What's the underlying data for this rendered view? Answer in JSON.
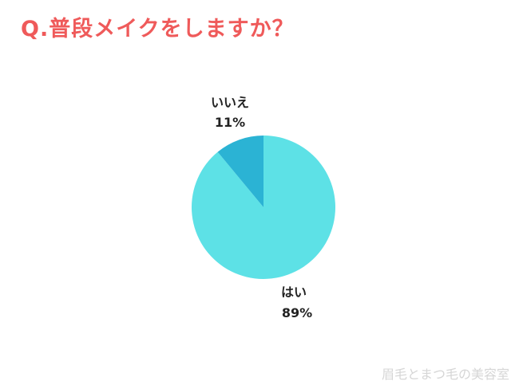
{
  "title": "Q.普段メイクをしますか？",
  "watermark": "眉毛とまつ毛の美容室",
  "colors": {
    "title": "#ef5a5a",
    "hai": "#5de1e6",
    "iie": "#2bb3d4"
  },
  "chart_data": {
    "type": "pie",
    "title": "Q.普段メイクをしますか？",
    "slices": [
      {
        "label": "はい",
        "value": 89,
        "value_label": "89%",
        "color": "#5de1e6"
      },
      {
        "label": "いいえ",
        "value": 11,
        "value_label": "11%",
        "color": "#2bb3d4"
      }
    ]
  }
}
